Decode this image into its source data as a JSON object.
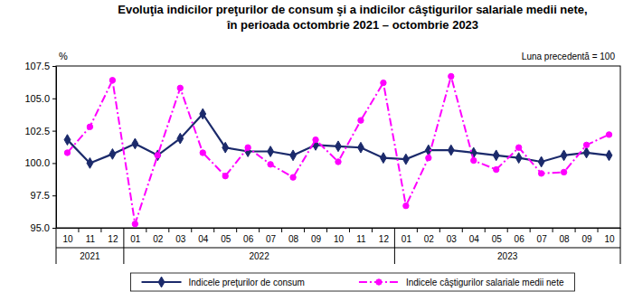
{
  "chart_data": {
    "type": "line",
    "title": [
      "Evoluţia indicilor preţurilor de consum şi a indicilor câştigurilor salariale medii nete,",
      "în perioada octombrie 2021 – octombrie 2023"
    ],
    "y_label": "%",
    "annotation": "Luna precedentă = 100",
    "categories": [
      "10",
      "11",
      "12",
      "01",
      "02",
      "03",
      "04",
      "05",
      "06",
      "07",
      "08",
      "09",
      "10",
      "11",
      "12",
      "01",
      "02",
      "03",
      "04",
      "05",
      "06",
      "07",
      "08",
      "09",
      "10"
    ],
    "category_groups": [
      "2021",
      "2021",
      "2021",
      "2022",
      "2022",
      "2022",
      "2022",
      "2022",
      "2022",
      "2022",
      "2022",
      "2022",
      "2022",
      "2022",
      "2022",
      "2023",
      "2023",
      "2023",
      "2023",
      "2023",
      "2023",
      "2023",
      "2023",
      "2023",
      "2023"
    ],
    "series": [
      {
        "name": "Indicele preţurilor de consum",
        "color": "#1b2a6b",
        "marker": "diamond",
        "line_style": "solid",
        "values": [
          101.8,
          100.0,
          100.7,
          101.5,
          100.6,
          101.9,
          103.8,
          101.2,
          100.9,
          100.9,
          100.6,
          101.4,
          101.3,
          101.2,
          100.4,
          100.3,
          101.0,
          101.0,
          100.8,
          100.6,
          100.4,
          100.1,
          100.6,
          100.8,
          100.6
        ]
      },
      {
        "name": "Indicele câştigurilor salariale medii nete",
        "color": "#ff00ff",
        "marker": "circle",
        "line_style": "dashdot",
        "values": [
          100.8,
          102.8,
          106.4,
          95.3,
          100.6,
          105.8,
          100.8,
          99.0,
          101.2,
          99.9,
          98.9,
          101.8,
          100.1,
          103.3,
          106.2,
          96.7,
          100.4,
          106.7,
          100.2,
          99.5,
          101.2,
          99.2,
          99.3,
          101.4,
          102.2
        ]
      }
    ],
    "ylim": [
      95,
      107.5
    ],
    "yticks": [
      {
        "value": 95,
        "label": "95.0"
      },
      97.5,
      {
        "value": 100,
        "label": "100.0"
      },
      102.5,
      {
        "value": 105,
        "label": "105.0"
      },
      107.5
    ],
    "grid": false,
    "legend": "bottom"
  }
}
